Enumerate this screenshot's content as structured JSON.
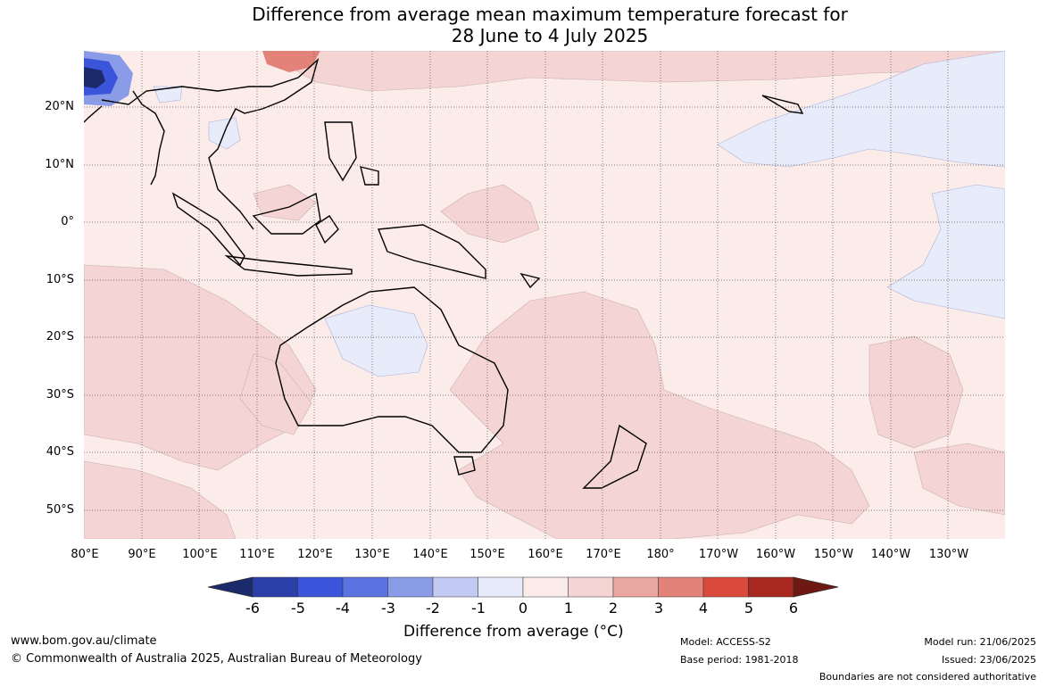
{
  "title": {
    "line1": "Difference from average mean maximum temperature forecast for",
    "line2": "28 June to 4 July 2025"
  },
  "map": {
    "lat_labels": [
      "20°N",
      "10°N",
      "0°",
      "10°S",
      "20°S",
      "30°S",
      "40°S",
      "50°S"
    ],
    "lon_labels": [
      "80°E",
      "90°E",
      "100°E",
      "110°E",
      "120°E",
      "130°E",
      "140°E",
      "150°E",
      "160°E",
      "170°E",
      "180°",
      "170°W",
      "160°W",
      "150°W",
      "140°W",
      "130°W"
    ],
    "background_color": "#fbebe9"
  },
  "legend": {
    "title": "Difference from average (°C)",
    "ticks": [
      "-6",
      "-5",
      "-4",
      "-3",
      "-2",
      "-1",
      "0",
      "1",
      "2",
      "3",
      "4",
      "5",
      "6"
    ],
    "colors": [
      "#1b2a6b",
      "#2a3fa8",
      "#3a55d9",
      "#5b73e0",
      "#8a9ce8",
      "#c2c9f2",
      "#e8ebfa",
      "#fbebe9",
      "#f4d5d3",
      "#eba8a3",
      "#e28278",
      "#d94a3c",
      "#a8281f",
      "#6e1812"
    ]
  },
  "footer": {
    "website": "www.bom.gov.au/climate",
    "copyright": "© Commonwealth of Australia 2025, Australian Bureau of Meteorology",
    "model": "Model: ACCESS-S2",
    "base_period": "Base period: 1981-2018",
    "model_run": "Model run: 21/06/2025",
    "issued": "Issued: 23/06/2025",
    "disclaimer": "Boundaries are not considered authoritative"
  }
}
